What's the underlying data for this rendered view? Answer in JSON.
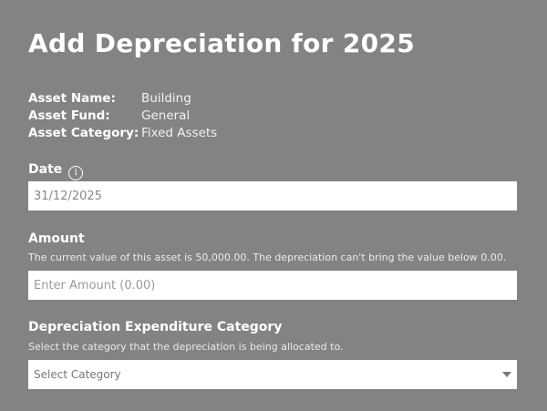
{
  "title": "Add Depreciation for 2025",
  "asset_info": [
    {
      "label": "Asset Name:",
      "value": "Building"
    },
    {
      "label": "Asset Fund:",
      "value": "General"
    },
    {
      "label": "Asset Category:",
      "value": "Fixed Assets"
    }
  ],
  "date": {
    "label": "Date",
    "icon": "info-icon",
    "value": "31/12/2025"
  },
  "amount": {
    "label": "Amount",
    "help": "The current value of this asset is 50,000.00. The depreciation can't bring the value below 0.00.",
    "placeholder": "Enter Amount (0.00)"
  },
  "category": {
    "label": "Depreciation Expenditure Category",
    "help": "Select the category that the depreciation is being allocated to.",
    "selected": "Select Category"
  }
}
